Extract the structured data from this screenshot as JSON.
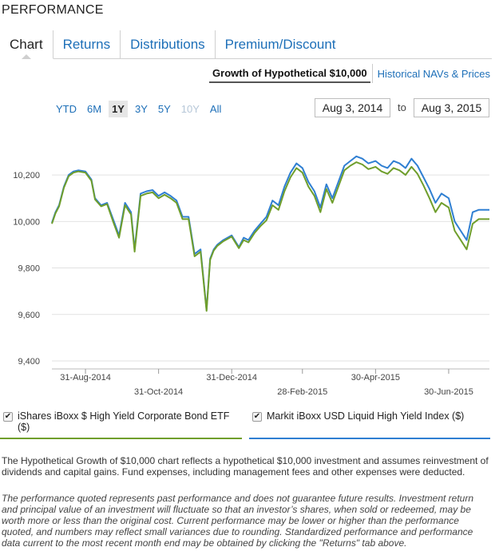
{
  "section_title": "PERFORMANCE",
  "tabs": [
    {
      "label": "Chart"
    },
    {
      "label": "Returns"
    },
    {
      "label": "Distributions"
    },
    {
      "label": "Premium/Discount"
    }
  ],
  "subtabs": {
    "growth_label": "Growth of Hypothetical $10,000",
    "navs_label": "Historical NAVs & Prices"
  },
  "ranges": [
    "YTD",
    "6M",
    "1Y",
    "3Y",
    "5Y",
    "10Y",
    "All"
  ],
  "date_range": {
    "from": "Aug 3, 2014",
    "to_label": "to",
    "to": "Aug 3, 2015"
  },
  "legend": {
    "fund": {
      "label": "iShares iBoxx $ High Yield Corporate Bond ETF ($)",
      "checked": true,
      "color": "#6f9e2c"
    },
    "index": {
      "label": "Markit iBoxx USD Liquid High Yield Index ($)",
      "checked": true,
      "color": "#2f7fd2"
    }
  },
  "description": "The Hypothetical Growth of $10,000 chart reflects a hypothetical $10,000 investment and assumes reinvestment of dividends and capital gains. Fund expenses, including management fees and other expenses were deducted.",
  "disclaimer": "The performance quoted represents past performance and does not guarantee future results. Investment return and principal value of an investment will fluctuate so that an investor’s shares, when sold or redeemed, may be worth more or less than the original cost. Current performance may be lower or higher than the performance quoted, and numbers may reflect small variances due to rounding. Standardized performance and performance data current to the most recent month end may be obtained by clicking the \"Returns\" tab above.",
  "chart_data": {
    "type": "line",
    "y_ticks": [
      "9,400",
      "9,600",
      "9,800",
      "10,000",
      "10,200"
    ],
    "y_tick_values": [
      9400,
      9600,
      9800,
      10000,
      10200
    ],
    "ylim": [
      9400,
      10300
    ],
    "x_ticks": [
      {
        "label": "31-Aug-2014",
        "date": "2014-08-31",
        "row": 1
      },
      {
        "label": "31-Oct-2014",
        "date": "2014-10-31",
        "row": 2
      },
      {
        "label": "31-Dec-2014",
        "date": "2014-12-31",
        "row": 1
      },
      {
        "label": "28-Feb-2015",
        "date": "2015-02-28",
        "row": 2
      },
      {
        "label": "30-Apr-2015",
        "date": "2015-04-30",
        "row": 1
      },
      {
        "label": "30-Jun-2015",
        "date": "2015-06-30",
        "row": 2
      }
    ],
    "xlim": [
      "2014-08-03",
      "2015-08-03"
    ],
    "grid": true,
    "x": [
      "2014-08-03",
      "2014-08-06",
      "2014-08-09",
      "2014-08-13",
      "2014-08-17",
      "2014-08-21",
      "2014-08-25",
      "2014-08-31",
      "2014-09-05",
      "2014-09-08",
      "2014-09-13",
      "2014-09-18",
      "2014-09-23",
      "2014-09-28",
      "2014-10-03",
      "2014-10-08",
      "2014-10-11",
      "2014-10-16",
      "2014-10-21",
      "2014-10-26",
      "2014-10-31",
      "2014-11-05",
      "2014-11-10",
      "2014-11-15",
      "2014-11-20",
      "2014-11-25",
      "2014-11-30",
      "2014-12-05",
      "2014-12-10",
      "2014-12-13",
      "2014-12-16",
      "2014-12-19",
      "2014-12-24",
      "2014-12-31",
      "2015-01-06",
      "2015-01-10",
      "2015-01-14",
      "2015-01-19",
      "2015-01-24",
      "2015-01-29",
      "2015-02-03",
      "2015-02-08",
      "2015-02-13",
      "2015-02-18",
      "2015-02-23",
      "2015-02-28",
      "2015-03-05",
      "2015-03-10",
      "2015-03-15",
      "2015-03-20",
      "2015-03-25",
      "2015-03-30",
      "2015-04-04",
      "2015-04-09",
      "2015-04-14",
      "2015-04-19",
      "2015-04-24",
      "2015-04-30",
      "2015-05-05",
      "2015-05-10",
      "2015-05-15",
      "2015-05-20",
      "2015-05-25",
      "2015-05-30",
      "2015-06-04",
      "2015-06-09",
      "2015-06-14",
      "2015-06-19",
      "2015-06-24",
      "2015-06-30",
      "2015-07-05",
      "2015-07-10",
      "2015-07-15",
      "2015-07-20",
      "2015-07-25",
      "2015-07-30",
      "2015-08-03"
    ],
    "series": [
      {
        "name": "Markit iBoxx USD Liquid High Yield Index ($)",
        "color": "#2f7fd2",
        "values": [
          9995,
          10040,
          10070,
          10150,
          10200,
          10215,
          10220,
          10215,
          10180,
          10100,
          10070,
          10080,
          10010,
          9940,
          10080,
          10040,
          9880,
          10120,
          10130,
          10135,
          10110,
          10125,
          10110,
          10090,
          10020,
          10020,
          9860,
          9880,
          9620,
          9840,
          9880,
          9900,
          9920,
          9940,
          9890,
          9930,
          9920,
          9960,
          9990,
          10020,
          10090,
          10070,
          10150,
          10210,
          10250,
          10230,
          10170,
          10130,
          10060,
          10160,
          10100,
          10170,
          10240,
          10260,
          10280,
          10270,
          10250,
          10260,
          10240,
          10230,
          10260,
          10250,
          10230,
          10270,
          10240,
          10190,
          10140,
          10080,
          10120,
          10100,
          10000,
          9960,
          9920,
          10040,
          10050,
          10050,
          10050
        ]
      },
      {
        "name": "iShares iBoxx $ High Yield Corporate Bond ETF ($)",
        "color": "#6f9e2c",
        "values": [
          9990,
          10035,
          10065,
          10145,
          10195,
          10210,
          10215,
          10210,
          10175,
          10095,
          10065,
          10075,
          10000,
          9930,
          10070,
          10030,
          9870,
          10110,
          10120,
          10125,
          10100,
          10115,
          10100,
          10080,
          10010,
          10010,
          9850,
          9870,
          9615,
          9835,
          9875,
          9895,
          9915,
          9935,
          9885,
          9920,
          9910,
          9950,
          9980,
          10005,
          10070,
          10050,
          10130,
          10190,
          10230,
          10210,
          10150,
          10110,
          10040,
          10140,
          10080,
          10150,
          10220,
          10240,
          10255,
          10245,
          10225,
          10235,
          10215,
          10205,
          10230,
          10220,
          10200,
          10235,
          10205,
          10155,
          10100,
          10040,
          10080,
          10060,
          9960,
          9920,
          9880,
          9990,
          10010,
          10010,
          10010
        ]
      }
    ]
  }
}
